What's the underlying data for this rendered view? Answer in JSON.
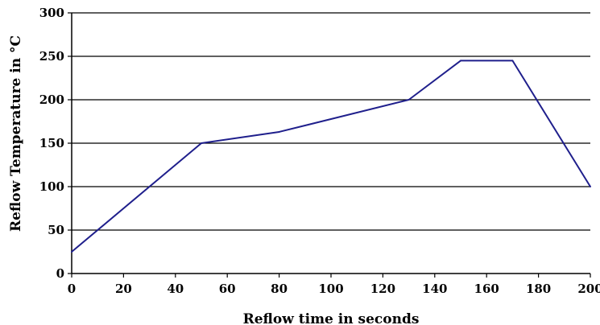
{
  "chart_data": {
    "type": "line",
    "title": "",
    "xlabel": "Reflow time in seconds",
    "ylabel": "Reflow Temperature in °C",
    "xlim": [
      0,
      200
    ],
    "ylim": [
      0,
      300
    ],
    "xticks": [
      0,
      20,
      40,
      60,
      80,
      100,
      120,
      140,
      160,
      180,
      200
    ],
    "yticks": [
      0,
      50,
      100,
      150,
      200,
      250,
      300
    ],
    "grid": "horizontal",
    "legend": "none",
    "series": [
      {
        "color": "#1f1f8c",
        "points": [
          {
            "x": 0,
            "y": 25
          },
          {
            "x": 50,
            "y": 150
          },
          {
            "x": 80,
            "y": 163
          },
          {
            "x": 130,
            "y": 200
          },
          {
            "x": 150,
            "y": 245
          },
          {
            "x": 170,
            "y": 245
          },
          {
            "x": 200,
            "y": 100
          }
        ]
      }
    ]
  }
}
